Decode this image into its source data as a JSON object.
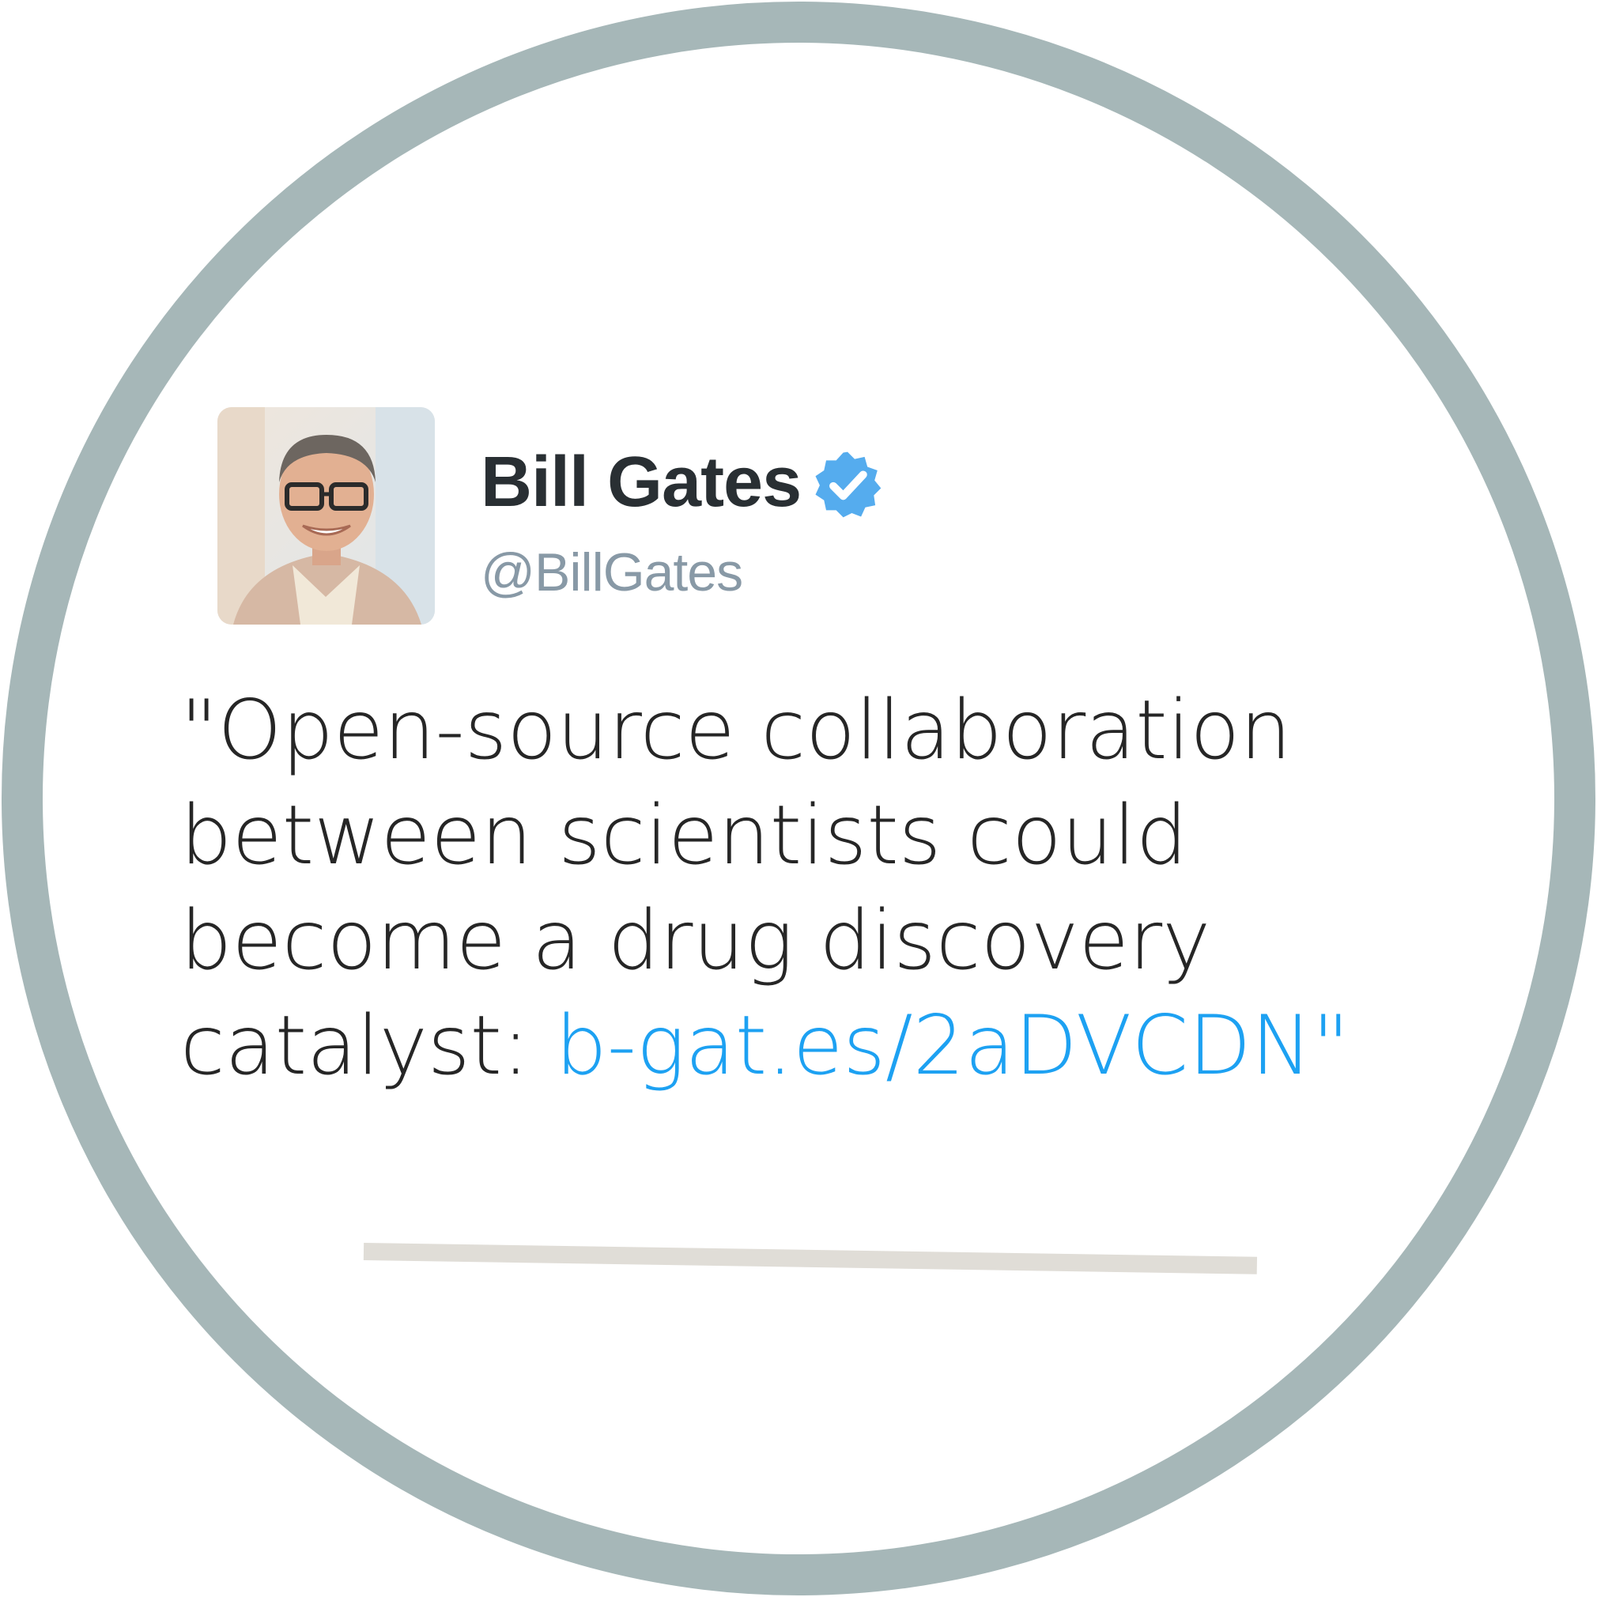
{
  "colors": {
    "ring": "#a6b7b8",
    "background": "#ffffff",
    "name": "#292f33",
    "handle": "#8899a6",
    "text": "#262626",
    "link": "#1da1f2",
    "verified": "#55acee",
    "divider": "#e0ddd7"
  },
  "profile": {
    "display_name": "Bill Gates",
    "handle": "@BillGates",
    "verified_icon": "verified-badge-icon"
  },
  "tweet": {
    "line1": "\"Open-source collaboration",
    "line2": "between scientists could",
    "line3": "become a drug discovery",
    "line4_prefix": "catalyst: ",
    "link_text": "b-gat.es/2aDVCDN",
    "closing_quote": "\""
  }
}
